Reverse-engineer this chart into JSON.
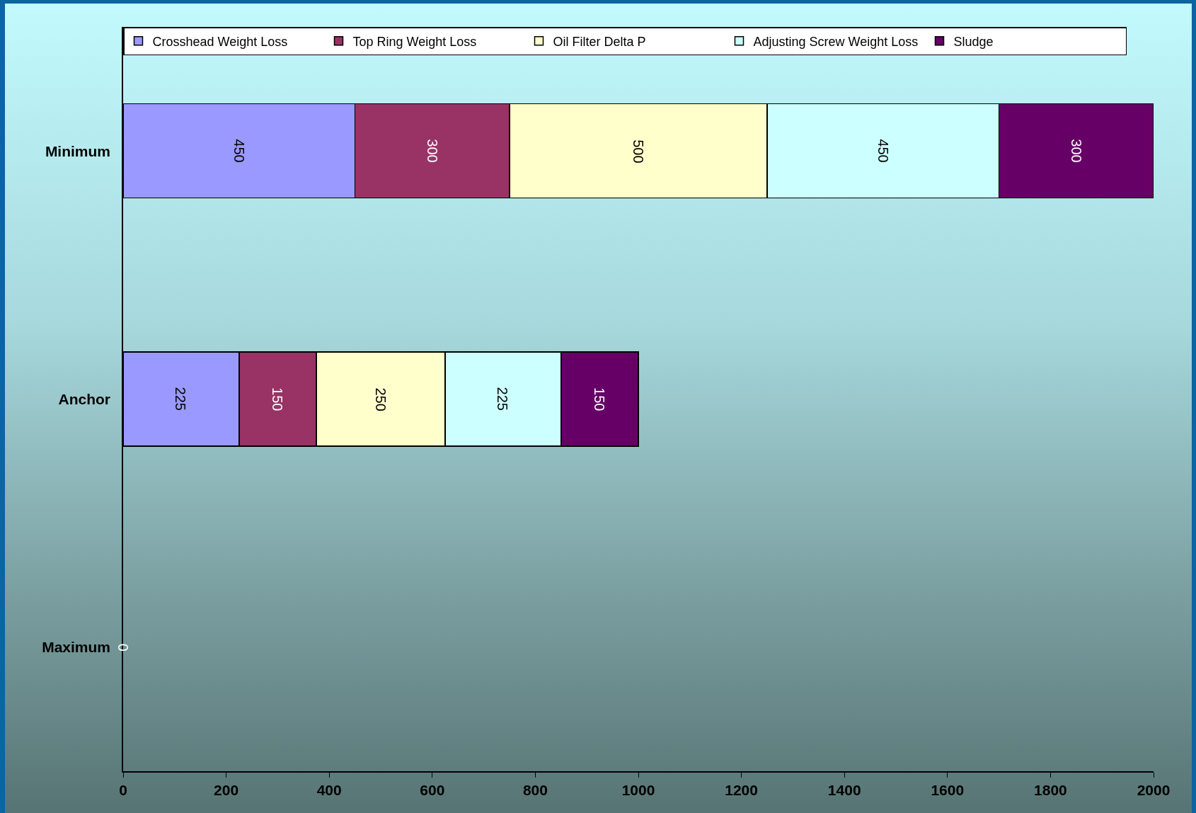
{
  "chart_data": {
    "type": "bar",
    "orientation": "horizontal",
    "stacked": true,
    "categories": [
      "Minimum",
      "Anchor",
      "Maximum"
    ],
    "series": [
      {
        "name": "Crosshead Weight Loss",
        "color": "#9999ff",
        "values": [
          450,
          225,
          0
        ],
        "value_labels": [
          "450",
          "225",
          null
        ]
      },
      {
        "name": "Top Ring Weight Loss",
        "color": "#993366",
        "values": [
          300,
          150,
          0
        ],
        "value_labels": [
          "300",
          "150",
          null
        ]
      },
      {
        "name": "Oil Filter Delta P",
        "color": "#ffffcc",
        "values": [
          500,
          250,
          0
        ],
        "value_labels": [
          "500",
          "250",
          null
        ]
      },
      {
        "name": "Adjusting Screw Weight Loss",
        "color": "#ccffff",
        "values": [
          450,
          225,
          0
        ],
        "value_labels": [
          "450",
          "225",
          null
        ]
      },
      {
        "name": "Sludge",
        "color": "#660066",
        "values": [
          300,
          150,
          0
        ],
        "value_labels": [
          "300",
          "150",
          "0"
        ]
      }
    ],
    "xlim": [
      0,
      2000
    ],
    "xticks": [
      0,
      200,
      400,
      600,
      800,
      1000,
      1200,
      1400,
      1600,
      1800,
      2000
    ],
    "legend": "top",
    "grid": false
  }
}
